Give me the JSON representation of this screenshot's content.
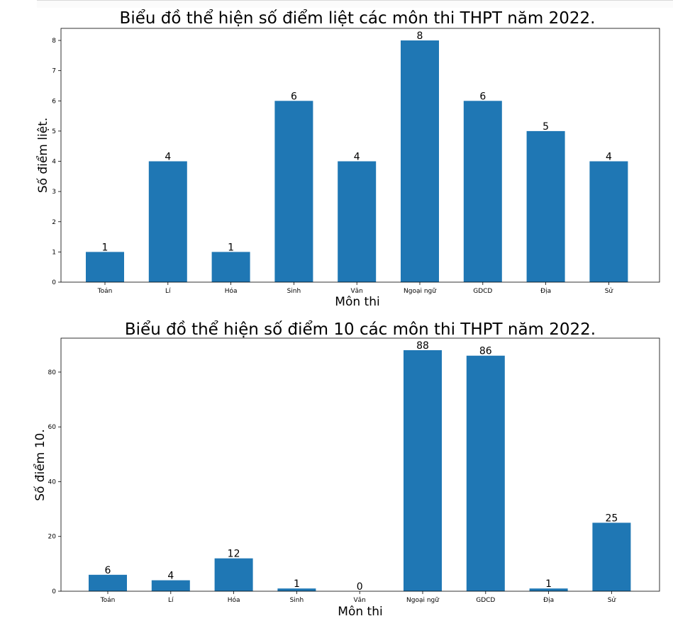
{
  "chart_data": [
    {
      "type": "bar",
      "title": "Biểu đồ thể hiện số điểm liệt các môn thi THPT năm 2022.",
      "xlabel": "Môn thi",
      "ylabel": "Số điểm liệt.",
      "categories": [
        "Toán",
        "Lí",
        "Hóa",
        "Sinh",
        "Văn",
        "Ngoại ngữ",
        "GDCD",
        "Địa",
        "Sử"
      ],
      "values": [
        1,
        4,
        1,
        6,
        4,
        8,
        6,
        5,
        4
      ],
      "yticks": [
        0,
        1,
        2,
        3,
        4,
        5,
        6,
        7,
        8
      ],
      "ylim": [
        0,
        8.4
      ],
      "grid": false,
      "bar_color": "#1f77b4"
    },
    {
      "type": "bar",
      "title": "Biểu đồ thể hiện số điểm 10 các môn thi THPT năm 2022.",
      "xlabel": "Môn thi",
      "ylabel": "Số điểm 10.",
      "categories": [
        "Toán",
        "Lí",
        "Hóa",
        "Sinh",
        "Văn",
        "Ngoại ngữ",
        "GDCD",
        "Địa",
        "Sử"
      ],
      "values": [
        6,
        4,
        12,
        1,
        0,
        88,
        86,
        1,
        25
      ],
      "yticks": [
        0,
        20,
        40,
        60,
        80
      ],
      "ylim": [
        0,
        92.4
      ],
      "grid": false,
      "bar_color": "#1f77b4"
    }
  ]
}
